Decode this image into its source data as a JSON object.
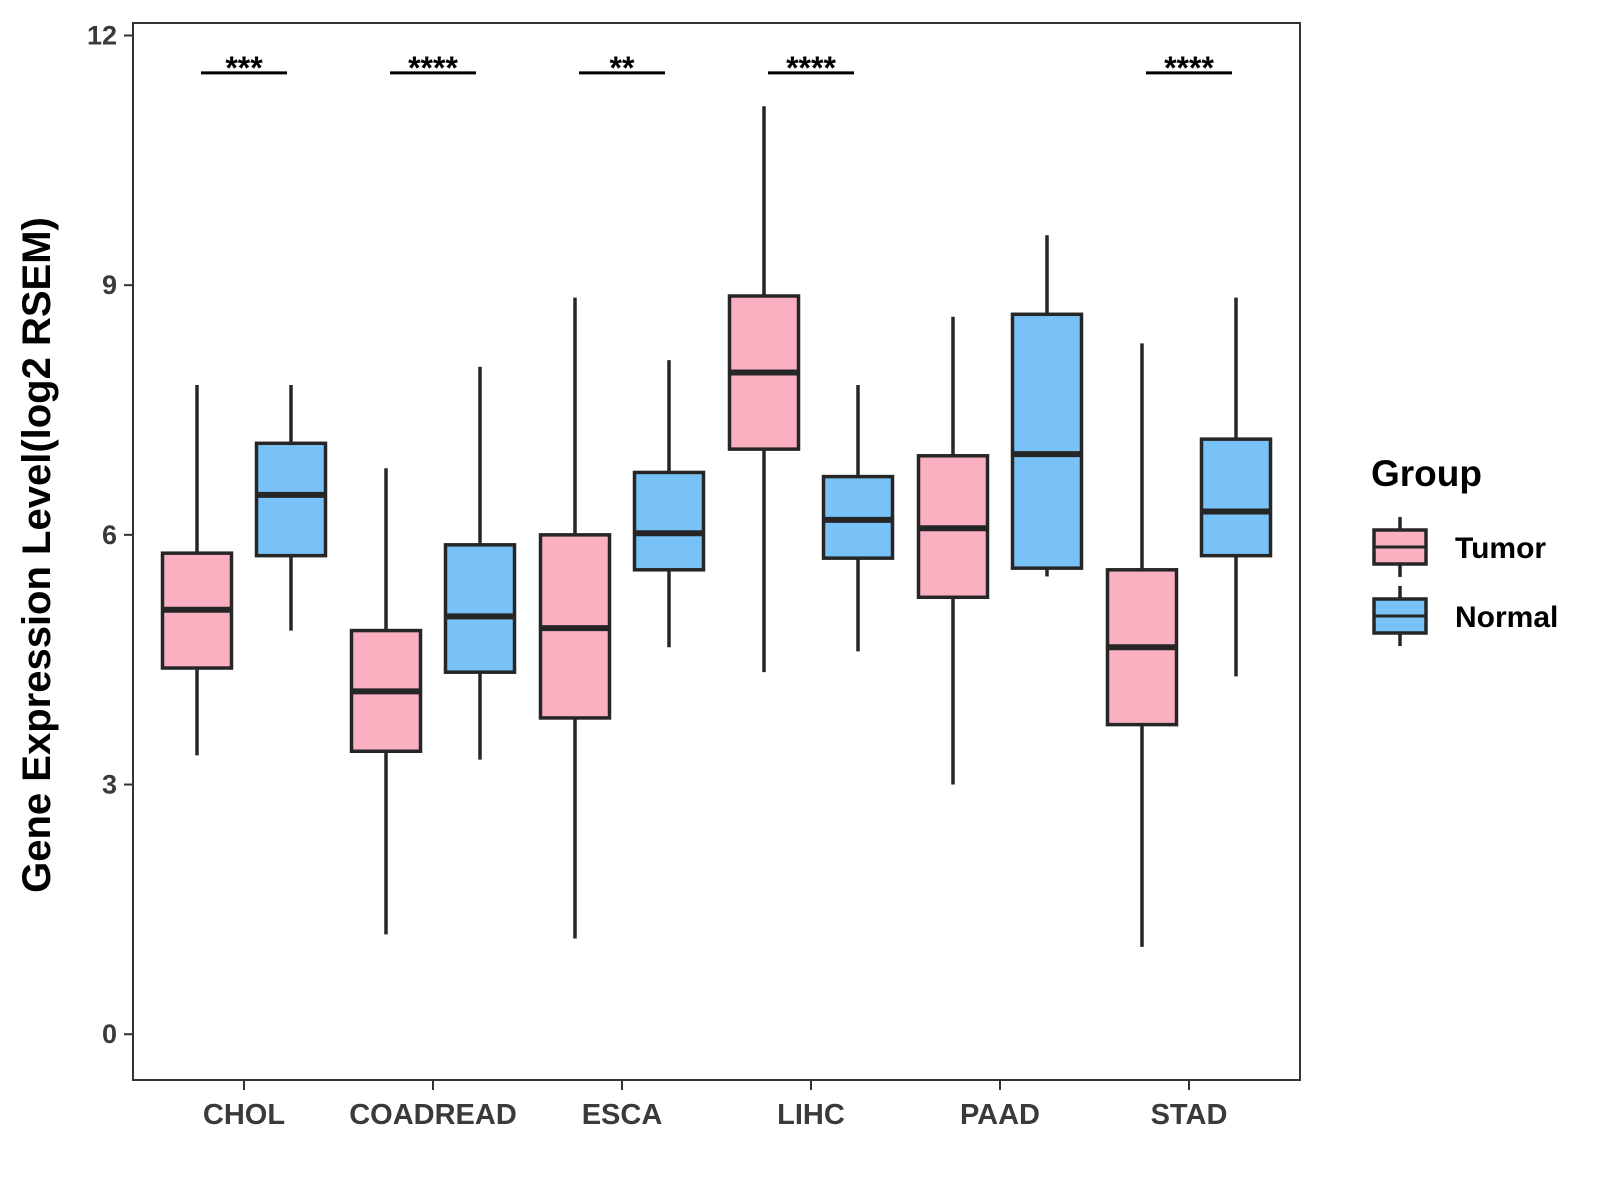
{
  "chart_data": {
    "type": "boxplot",
    "title": "",
    "xlabel": "",
    "ylabel": "Gene Expression Level(log2 RSEM)",
    "ylim": [
      -0.55,
      12.15
    ],
    "yticks": [
      0,
      3,
      6,
      9,
      12
    ],
    "grid": false,
    "legend": {
      "title": "Group",
      "position": "right",
      "entries": [
        {
          "name": "Tumor",
          "color": "#fbb0c2"
        },
        {
          "name": "Normal",
          "color": "#78c2f8"
        }
      ]
    },
    "categories": [
      "CHOL",
      "COADREAD",
      "ESCA",
      "LIHC",
      "PAAD",
      "STAD"
    ],
    "series": [
      {
        "name": "Tumor",
        "color": "#fbb0c2",
        "boxes": [
          {
            "min": 3.35,
            "q1": 4.4,
            "median": 5.1,
            "q3": 5.78,
            "max": 7.8
          },
          {
            "min": 1.2,
            "q1": 3.4,
            "median": 4.12,
            "q3": 4.85,
            "max": 6.8
          },
          {
            "min": 1.15,
            "q1": 3.8,
            "median": 4.88,
            "q3": 6.0,
            "max": 8.85
          },
          {
            "min": 4.35,
            "q1": 7.03,
            "median": 7.95,
            "q3": 8.87,
            "max": 11.15
          },
          {
            "min": 3.0,
            "q1": 5.25,
            "median": 6.08,
            "q3": 6.95,
            "max": 8.62
          },
          {
            "min": 1.05,
            "q1": 3.72,
            "median": 4.65,
            "q3": 5.58,
            "max": 8.3
          }
        ]
      },
      {
        "name": "Normal",
        "color": "#78c2f8",
        "boxes": [
          {
            "min": 4.85,
            "q1": 5.75,
            "median": 6.48,
            "q3": 7.1,
            "max": 7.8
          },
          {
            "min": 3.3,
            "q1": 4.35,
            "median": 5.02,
            "q3": 5.88,
            "max": 8.02
          },
          {
            "min": 4.65,
            "q1": 5.58,
            "median": 6.02,
            "q3": 6.75,
            "max": 8.1
          },
          {
            "min": 4.6,
            "q1": 5.72,
            "median": 6.18,
            "q3": 6.7,
            "max": 7.8
          },
          {
            "min": 5.5,
            "q1": 5.6,
            "median": 6.97,
            "q3": 8.65,
            "max": 9.6
          },
          {
            "min": 4.3,
            "q1": 5.75,
            "median": 6.28,
            "q3": 7.15,
            "max": 8.85
          }
        ]
      }
    ],
    "significance": [
      "***",
      "****",
      "**",
      "****",
      "",
      "****"
    ],
    "significance_y": 11.55
  }
}
